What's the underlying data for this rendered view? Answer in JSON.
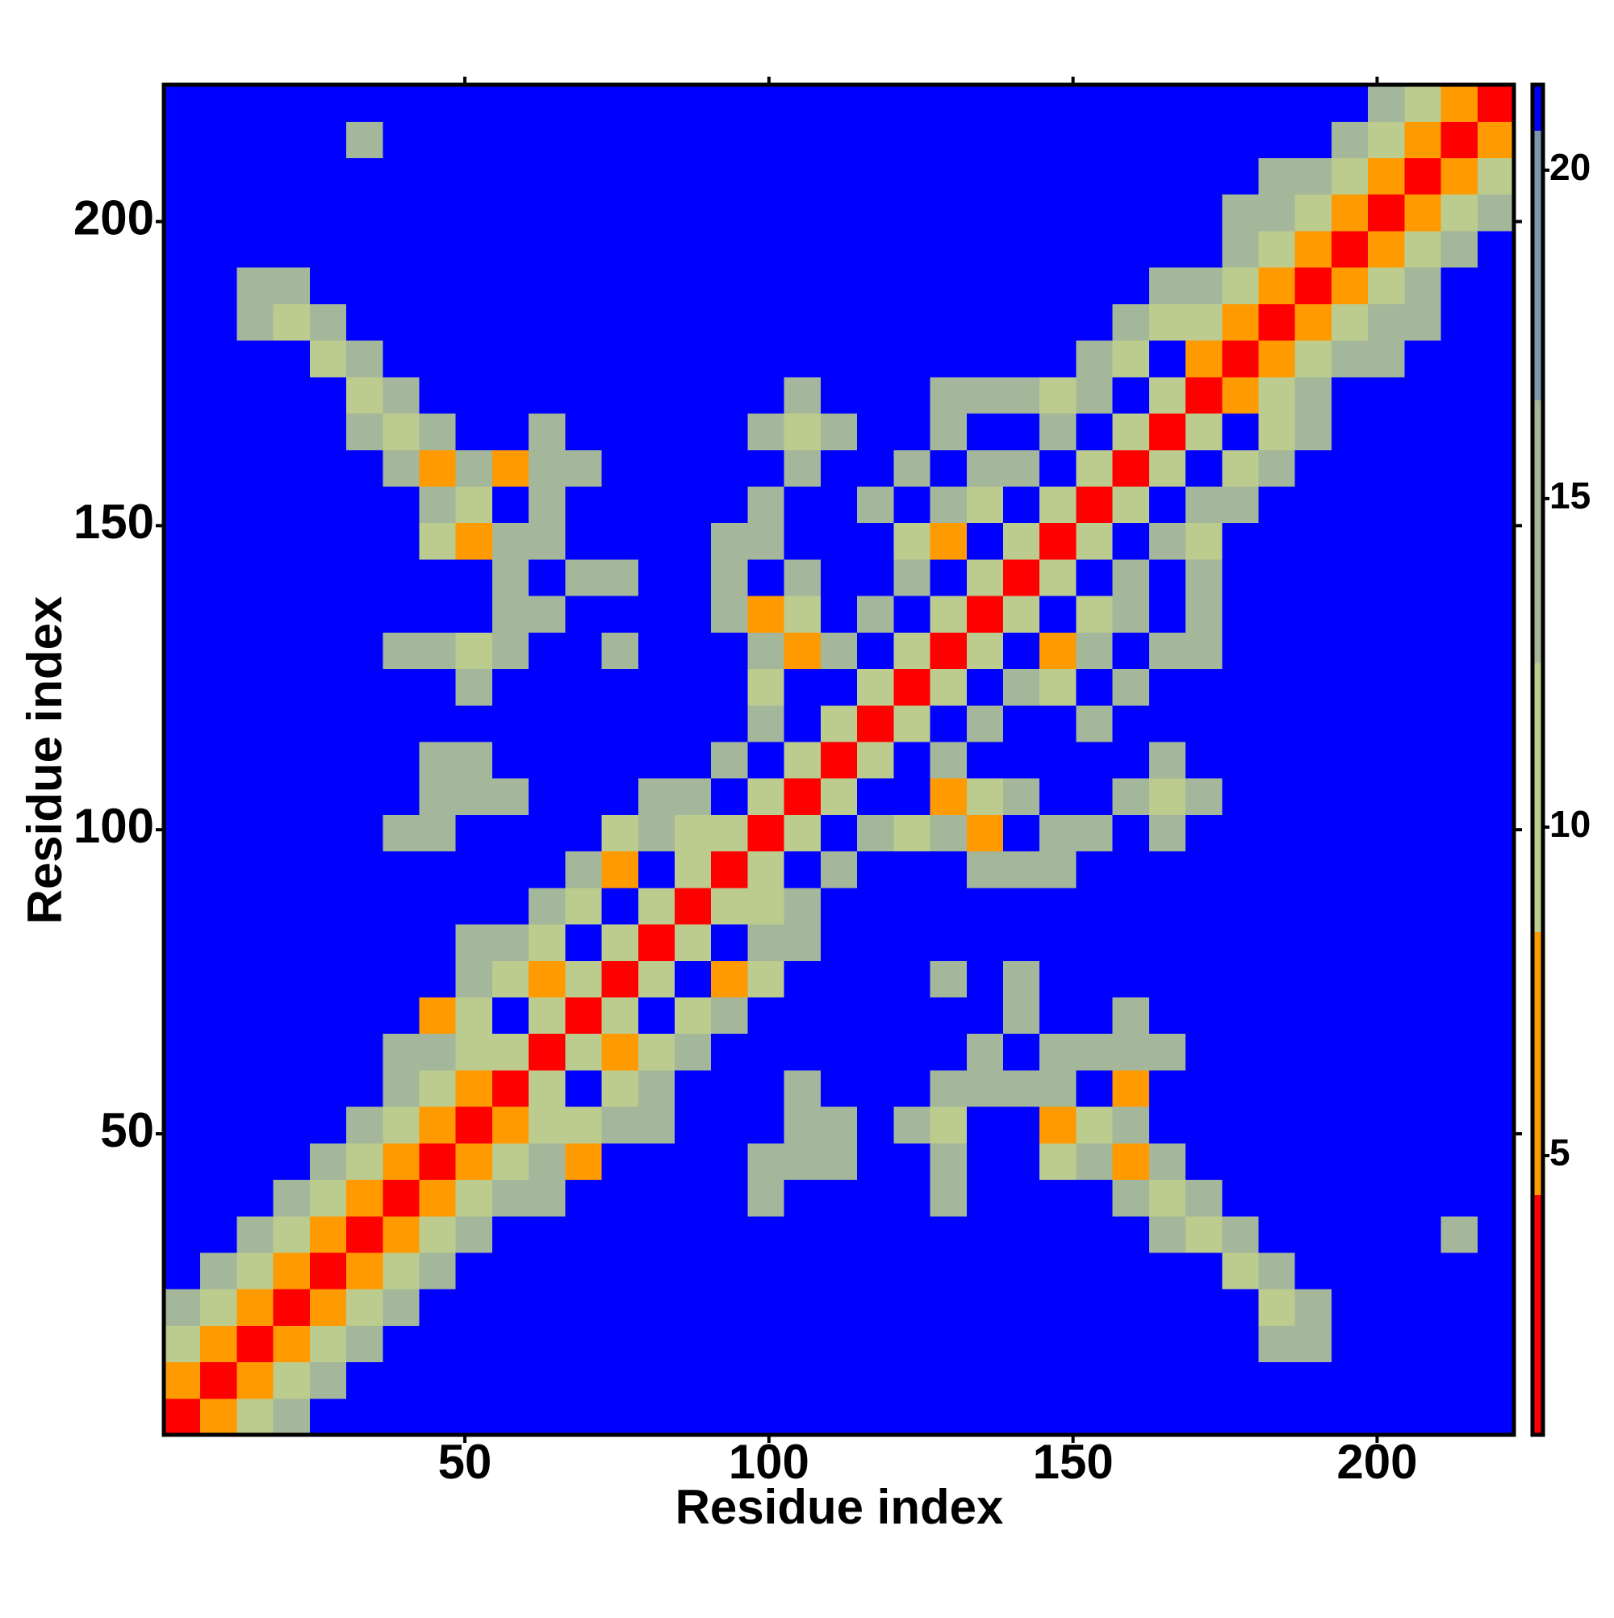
{
  "chart_data": {
    "type": "heatmap",
    "x_label": "Residue index",
    "y_label": "Residue index",
    "xlim": [
      0.5,
      222.5
    ],
    "ylim": [
      0.5,
      222.5
    ],
    "xticks": [
      50,
      100,
      150,
      200
    ],
    "yticks": [
      50,
      100,
      150,
      200
    ],
    "xbins": [
      0.5,
      6.5,
      12.5,
      18.5,
      24.5,
      30.5,
      36.5,
      42.5,
      48.5,
      54.5,
      60.5,
      66.5,
      72.5,
      78.5,
      84.5,
      90.5,
      96.5,
      102.5,
      108.5,
      114.5,
      120.5,
      126.5,
      132.5,
      138.5,
      144.5,
      150.5,
      156.5,
      162.5,
      168.5,
      174.5,
      180.5,
      186.5,
      192.5,
      198.5,
      204.5,
      210.5,
      216.5,
      222.5
    ],
    "ybins": [
      0.5,
      6.5,
      12.5,
      18.5,
      24.5,
      30.5,
      36.5,
      42.5,
      48.5,
      54.5,
      60.5,
      66.5,
      72.5,
      78.5,
      84.5,
      90.5,
      96.5,
      102.5,
      108.5,
      114.5,
      120.5,
      126.5,
      132.5,
      138.5,
      144.5,
      150.5,
      156.5,
      162.5,
      168.5,
      174.5,
      180.5,
      186.5,
      192.5,
      198.5,
      204.5,
      210.5,
      216.5,
      222.5
    ],
    "values": [
      [
        3,
        6,
        10,
        14,
        21,
        21,
        21,
        21,
        21,
        21,
        21,
        21,
        21,
        21,
        21,
        21,
        21,
        21,
        21,
        21,
        21,
        21,
        21,
        21,
        21,
        21,
        21,
        21,
        21,
        21,
        21,
        21,
        21,
        21,
        21,
        21,
        21
      ],
      [
        6,
        3,
        6,
        10,
        14,
        21,
        21,
        21,
        21,
        21,
        21,
        21,
        21,
        21,
        21,
        21,
        21,
        21,
        21,
        21,
        21,
        21,
        21,
        21,
        21,
        21,
        21,
        21,
        21,
        21,
        21,
        21,
        21,
        21,
        21,
        21,
        21
      ],
      [
        10,
        6,
        3,
        6,
        10,
        14,
        21,
        21,
        21,
        21,
        21,
        21,
        21,
        21,
        21,
        21,
        21,
        21,
        21,
        21,
        21,
        21,
        21,
        21,
        21,
        21,
        21,
        21,
        21,
        21,
        14,
        14,
        21,
        21,
        21,
        21,
        21
      ],
      [
        14,
        10,
        6,
        3,
        6,
        10,
        14,
        21,
        21,
        21,
        21,
        21,
        21,
        21,
        21,
        21,
        21,
        21,
        21,
        21,
        21,
        21,
        21,
        21,
        21,
        21,
        21,
        21,
        21,
        21,
        10,
        14,
        21,
        21,
        21,
        21,
        21
      ],
      [
        21,
        14,
        10,
        6,
        3,
        6,
        10,
        14,
        21,
        21,
        21,
        21,
        21,
        21,
        21,
        21,
        21,
        21,
        21,
        21,
        21,
        21,
        21,
        21,
        21,
        21,
        21,
        21,
        21,
        10,
        14,
        21,
        21,
        21,
        21,
        21,
        21
      ],
      [
        21,
        21,
        14,
        10,
        6,
        3,
        6,
        10,
        14,
        21,
        21,
        21,
        21,
        21,
        21,
        21,
        21,
        21,
        21,
        21,
        21,
        21,
        21,
        21,
        21,
        21,
        21,
        14,
        10,
        14,
        21,
        21,
        21,
        21,
        21,
        14,
        21
      ],
      [
        21,
        21,
        21,
        14,
        10,
        6,
        3,
        6,
        10,
        14,
        14,
        21,
        21,
        21,
        21,
        21,
        14,
        21,
        21,
        21,
        21,
        14,
        21,
        21,
        21,
        21,
        14,
        10,
        14,
        21,
        21,
        21,
        21,
        21,
        21,
        21,
        21
      ],
      [
        21,
        21,
        21,
        21,
        14,
        10,
        6,
        3,
        6,
        10,
        14,
        6,
        21,
        21,
        21,
        21,
        14,
        14,
        14,
        21,
        21,
        14,
        21,
        21,
        10,
        14,
        6,
        14,
        21,
        21,
        21,
        21,
        21,
        21,
        21,
        21,
        21
      ],
      [
        21,
        21,
        21,
        21,
        21,
        14,
        10,
        6,
        3,
        6,
        10,
        10,
        14,
        14,
        21,
        21,
        21,
        14,
        14,
        21,
        14,
        10,
        21,
        21,
        6,
        10,
        14,
        21,
        21,
        21,
        21,
        21,
        21,
        21,
        21,
        21,
        21
      ],
      [
        21,
        21,
        21,
        21,
        21,
        21,
        14,
        10,
        6,
        3,
        9,
        21,
        10,
        14,
        21,
        21,
        21,
        14,
        21,
        21,
        21,
        14,
        14,
        14,
        14,
        21,
        6,
        21,
        21,
        21,
        21,
        21,
        21,
        21,
        21,
        21,
        21
      ],
      [
        21,
        21,
        21,
        21,
        21,
        21,
        14,
        14,
        10,
        9,
        3,
        9,
        6,
        10,
        14,
        21,
        21,
        21,
        21,
        21,
        21,
        21,
        14,
        21,
        14,
        14,
        14,
        14,
        21,
        21,
        21,
        21,
        21,
        21,
        21,
        21,
        21
      ],
      [
        21,
        21,
        21,
        21,
        21,
        21,
        21,
        6,
        10,
        21,
        9,
        3,
        9,
        21,
        10,
        14,
        21,
        21,
        21,
        21,
        21,
        21,
        21,
        14,
        21,
        21,
        14,
        21,
        21,
        21,
        21,
        21,
        21,
        21,
        21,
        21,
        21
      ],
      [
        21,
        21,
        21,
        21,
        21,
        21,
        21,
        21,
        14,
        10,
        6,
        9,
        3,
        9,
        21,
        6,
        10,
        21,
        21,
        21,
        21,
        14,
        21,
        14,
        21,
        21,
        21,
        21,
        21,
        21,
        21,
        21,
        21,
        21,
        21,
        21,
        21
      ],
      [
        21,
        21,
        21,
        21,
        21,
        21,
        21,
        21,
        14,
        14,
        10,
        21,
        9,
        3,
        9,
        21,
        14,
        14,
        21,
        21,
        21,
        21,
        21,
        21,
        21,
        21,
        21,
        21,
        21,
        21,
        21,
        21,
        21,
        21,
        21,
        21,
        21
      ],
      [
        21,
        21,
        21,
        21,
        21,
        21,
        21,
        21,
        21,
        21,
        14,
        10,
        21,
        9,
        3,
        9,
        10,
        14,
        21,
        21,
        21,
        21,
        21,
        21,
        21,
        21,
        21,
        21,
        21,
        21,
        21,
        21,
        21,
        21,
        21,
        21,
        21
      ],
      [
        21,
        21,
        21,
        21,
        21,
        21,
        21,
        21,
        21,
        21,
        21,
        14,
        6,
        21,
        9,
        3,
        9,
        21,
        14,
        21,
        21,
        21,
        14,
        14,
        14,
        21,
        21,
        21,
        21,
        21,
        21,
        21,
        21,
        21,
        21,
        21,
        21
      ],
      [
        21,
        21,
        21,
        21,
        21,
        21,
        14,
        14,
        21,
        21,
        21,
        21,
        10,
        14,
        10,
        9,
        3,
        9,
        21,
        14,
        10,
        14,
        6,
        21,
        14,
        14,
        21,
        14,
        21,
        21,
        21,
        21,
        21,
        21,
        21,
        21,
        21
      ],
      [
        21,
        21,
        21,
        21,
        21,
        21,
        21,
        14,
        14,
        14,
        21,
        21,
        21,
        14,
        14,
        21,
        9,
        3,
        9,
        21,
        21,
        6,
        10,
        14,
        21,
        21,
        14,
        10,
        14,
        21,
        21,
        21,
        21,
        21,
        21,
        21,
        21
      ],
      [
        21,
        21,
        21,
        21,
        21,
        21,
        21,
        14,
        14,
        21,
        21,
        21,
        21,
        21,
        21,
        14,
        21,
        9,
        3,
        9,
        21,
        14,
        21,
        21,
        21,
        21,
        21,
        14,
        21,
        21,
        21,
        21,
        21,
        21,
        21,
        21,
        21
      ],
      [
        21,
        21,
        21,
        21,
        21,
        21,
        21,
        21,
        21,
        21,
        21,
        21,
        21,
        21,
        21,
        21,
        14,
        21,
        9,
        3,
        9,
        21,
        14,
        21,
        21,
        14,
        21,
        21,
        21,
        21,
        21,
        21,
        21,
        21,
        21,
        21,
        21
      ],
      [
        21,
        21,
        21,
        21,
        21,
        21,
        21,
        21,
        14,
        21,
        21,
        21,
        21,
        21,
        21,
        21,
        10,
        21,
        21,
        9,
        3,
        9,
        21,
        14,
        10,
        21,
        14,
        21,
        21,
        21,
        21,
        21,
        21,
        21,
        21,
        21,
        21
      ],
      [
        21,
        21,
        21,
        21,
        21,
        21,
        14,
        14,
        10,
        14,
        21,
        21,
        14,
        21,
        21,
        21,
        14,
        6,
        14,
        21,
        9,
        3,
        9,
        21,
        6,
        14,
        21,
        14,
        14,
        21,
        21,
        21,
        21,
        21,
        21,
        21,
        21
      ],
      [
        21,
        21,
        21,
        21,
        21,
        21,
        21,
        21,
        21,
        14,
        14,
        21,
        21,
        21,
        21,
        14,
        6,
        10,
        21,
        14,
        21,
        9,
        3,
        9,
        21,
        10,
        14,
        21,
        14,
        21,
        21,
        21,
        21,
        21,
        21,
        21,
        21
      ],
      [
        21,
        21,
        21,
        21,
        21,
        21,
        21,
        21,
        21,
        14,
        21,
        14,
        14,
        21,
        21,
        14,
        21,
        14,
        21,
        21,
        14,
        21,
        9,
        3,
        9,
        21,
        14,
        21,
        14,
        21,
        21,
        21,
        21,
        21,
        21,
        21,
        21
      ],
      [
        21,
        21,
        21,
        21,
        21,
        21,
        21,
        10,
        6,
        14,
        14,
        21,
        21,
        21,
        21,
        14,
        14,
        21,
        21,
        21,
        10,
        6,
        21,
        9,
        3,
        9,
        21,
        14,
        10,
        21,
        21,
        21,
        21,
        21,
        21,
        21,
        21
      ],
      [
        21,
        21,
        21,
        21,
        21,
        21,
        21,
        14,
        10,
        21,
        14,
        21,
        21,
        21,
        21,
        21,
        14,
        21,
        21,
        14,
        21,
        14,
        10,
        21,
        9,
        3,
        9,
        21,
        14,
        14,
        21,
        21,
        21,
        21,
        21,
        21,
        21
      ],
      [
        21,
        21,
        21,
        21,
        21,
        21,
        14,
        6,
        14,
        6,
        14,
        14,
        21,
        21,
        21,
        21,
        21,
        14,
        21,
        21,
        14,
        21,
        14,
        14,
        21,
        9,
        3,
        9,
        21,
        10,
        14,
        21,
        21,
        21,
        21,
        21,
        21
      ],
      [
        21,
        21,
        21,
        21,
        21,
        14,
        10,
        14,
        21,
        21,
        14,
        21,
        21,
        21,
        21,
        21,
        14,
        10,
        14,
        21,
        21,
        14,
        21,
        21,
        14,
        21,
        9,
        3,
        9,
        21,
        10,
        14,
        21,
        21,
        21,
        21,
        21
      ],
      [
        21,
        21,
        21,
        21,
        21,
        10,
        14,
        21,
        21,
        21,
        21,
        21,
        21,
        21,
        21,
        21,
        21,
        14,
        21,
        21,
        21,
        14,
        14,
        14,
        10,
        14,
        21,
        9,
        3,
        6,
        10,
        14,
        21,
        21,
        21,
        21,
        21
      ],
      [
        21,
        21,
        21,
        21,
        10,
        14,
        21,
        21,
        21,
        21,
        21,
        21,
        21,
        21,
        21,
        21,
        21,
        21,
        21,
        21,
        21,
        21,
        21,
        21,
        21,
        14,
        10,
        21,
        6,
        3,
        6,
        10,
        14,
        14,
        21,
        21,
        21
      ],
      [
        21,
        21,
        14,
        10,
        14,
        21,
        21,
        21,
        21,
        21,
        21,
        21,
        21,
        21,
        21,
        21,
        21,
        21,
        21,
        21,
        21,
        21,
        21,
        21,
        21,
        21,
        14,
        10,
        10,
        6,
        3,
        6,
        10,
        14,
        14,
        21,
        21
      ],
      [
        21,
        21,
        14,
        14,
        21,
        21,
        21,
        21,
        21,
        21,
        21,
        21,
        21,
        21,
        21,
        21,
        21,
        21,
        21,
        21,
        21,
        21,
        21,
        21,
        21,
        21,
        21,
        14,
        14,
        10,
        6,
        3,
        6,
        10,
        14,
        21,
        21
      ],
      [
        21,
        21,
        21,
        21,
        21,
        21,
        21,
        21,
        21,
        21,
        21,
        21,
        21,
        21,
        21,
        21,
        21,
        21,
        21,
        21,
        21,
        21,
        21,
        21,
        21,
        21,
        21,
        21,
        21,
        14,
        10,
        6,
        3,
        6,
        10,
        14,
        21
      ],
      [
        21,
        21,
        21,
        21,
        21,
        21,
        21,
        21,
        21,
        21,
        21,
        21,
        21,
        21,
        21,
        21,
        21,
        21,
        21,
        21,
        21,
        21,
        21,
        21,
        21,
        21,
        21,
        21,
        21,
        14,
        14,
        10,
        6,
        3,
        6,
        10,
        14
      ],
      [
        21,
        21,
        21,
        21,
        21,
        21,
        21,
        21,
        21,
        21,
        21,
        21,
        21,
        21,
        21,
        21,
        21,
        21,
        21,
        21,
        21,
        21,
        21,
        21,
        21,
        21,
        21,
        21,
        21,
        21,
        14,
        14,
        10,
        6,
        3,
        6,
        10
      ],
      [
        21,
        21,
        21,
        21,
        21,
        14,
        21,
        21,
        21,
        21,
        21,
        21,
        21,
        21,
        21,
        21,
        21,
        21,
        21,
        21,
        21,
        21,
        21,
        21,
        21,
        21,
        21,
        21,
        21,
        21,
        21,
        21,
        14,
        10,
        6,
        3,
        6
      ],
      [
        21,
        21,
        21,
        21,
        21,
        21,
        21,
        21,
        21,
        21,
        21,
        21,
        21,
        21,
        21,
        21,
        21,
        21,
        21,
        21,
        21,
        21,
        21,
        21,
        21,
        21,
        21,
        21,
        21,
        21,
        21,
        21,
        21,
        14,
        10,
        6,
        3
      ]
    ],
    "colorscale": [
      {
        "from": 0.75,
        "color": "#ff0000"
      },
      {
        "from": 4.4,
        "color": "#ff9a00"
      },
      {
        "from": 8.4,
        "color": "#bccb8e"
      },
      {
        "from": 12.5,
        "color": "#a4b79a"
      },
      {
        "from": 16.5,
        "color": "#7f97ad"
      },
      {
        "from": 20.6,
        "color": "#0000ff"
      }
    ],
    "colorbar": {
      "lim": [
        0.75,
        21.3
      ],
      "ticks": [
        5,
        10,
        15,
        20
      ]
    }
  }
}
